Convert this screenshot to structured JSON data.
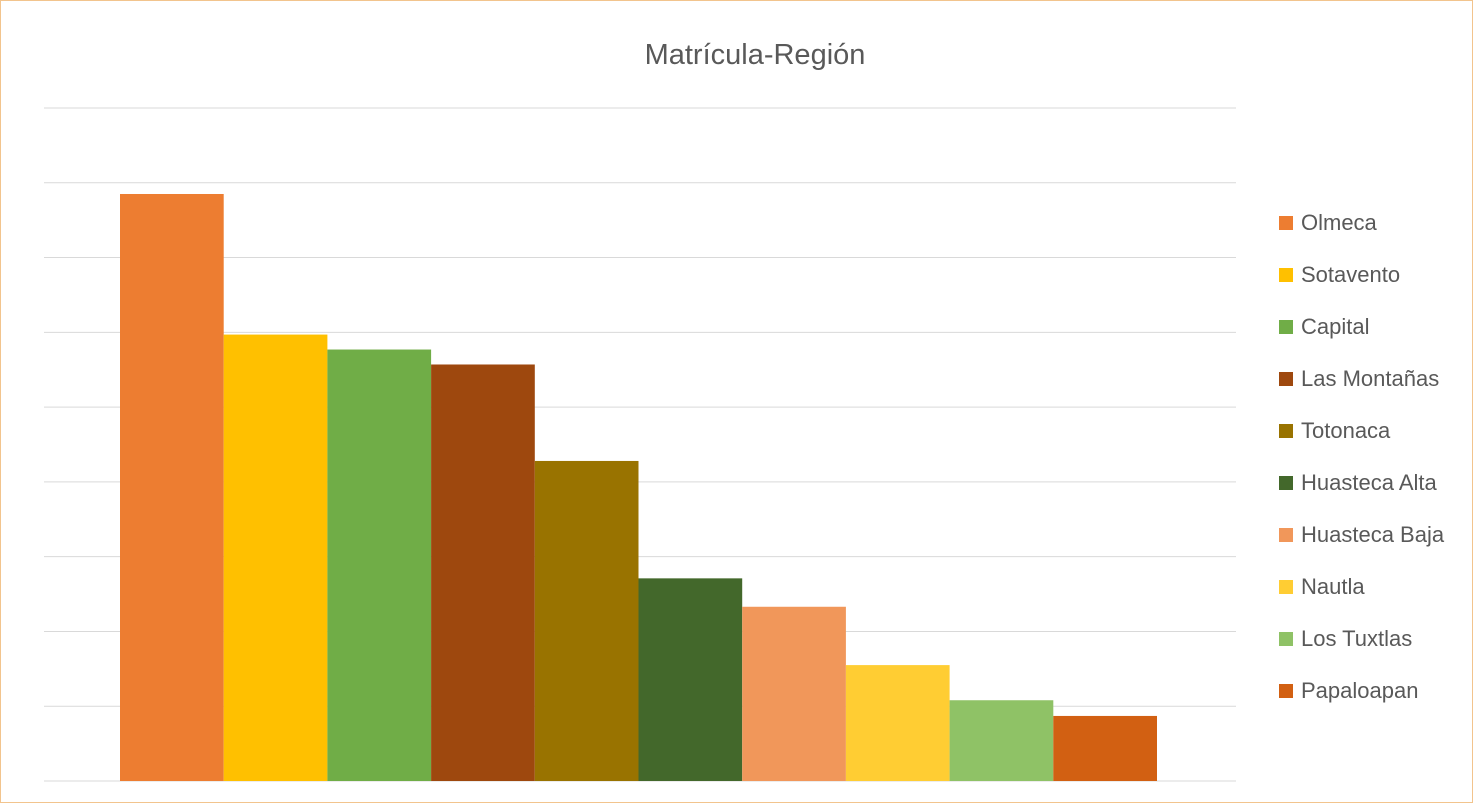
{
  "chart_data": {
    "type": "bar",
    "title": "Matrícula-Región",
    "xlabel": "",
    "ylabel": "",
    "ylim": [
      0,
      9
    ],
    "grid": true,
    "legend_position": "right",
    "series": [
      {
        "name": "Olmeca",
        "value": 7.85,
        "color": "#ED7D31"
      },
      {
        "name": "Sotavento",
        "value": 5.97,
        "color": "#FFC000"
      },
      {
        "name": "Capital",
        "value": 5.77,
        "color": "#70AD47"
      },
      {
        "name": "Las Montañas",
        "value": 5.57,
        "color": "#9E480E"
      },
      {
        "name": "Totonaca",
        "value": 4.28,
        "color": "#997300"
      },
      {
        "name": "Huasteca Alta",
        "value": 2.71,
        "color": "#43682B"
      },
      {
        "name": "Huasteca Baja",
        "value": 2.33,
        "color": "#F1975A"
      },
      {
        "name": "Nautla",
        "value": 1.55,
        "color": "#FFCD33"
      },
      {
        "name": "Los Tuxtlas",
        "value": 1.08,
        "color": "#8FC266"
      },
      {
        "name": "Papaloapan",
        "value": 0.87,
        "color": "#D26012"
      }
    ]
  }
}
